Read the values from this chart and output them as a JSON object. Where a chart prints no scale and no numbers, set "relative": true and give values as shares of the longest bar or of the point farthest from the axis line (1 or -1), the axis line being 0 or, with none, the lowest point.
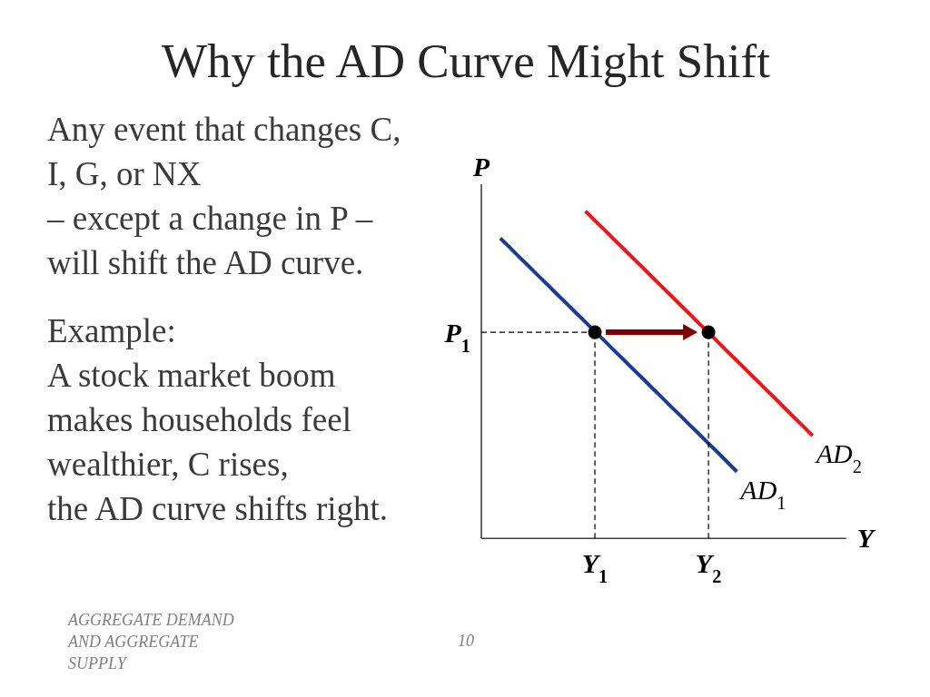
{
  "chart_data": {
    "type": "line",
    "title": "Why the AD Curve Might Shift",
    "xlabel": "Y",
    "ylabel": "P",
    "relative": true,
    "categories": [
      null,
      null,
      null,
      null,
      null,
      null,
      null,
      null,
      null,
      null,
      null,
      null,
      "Y$_{1}$",
      null,
      null,
      null,
      null,
      null,
      null,
      null,
      null,
      null,
      null,
      null,
      "Y$_{2}$",
      null,
      null,
      null,
      null,
      null,
      null,
      null,
      null,
      null,
      null,
      null,
      null,
      null,
      null
    ],
    "series": [
      {
        "name": "AD$_{1}$",
        "color": "#1a3c96",
        "values": [
          null,
          null,
          0.917,
          0.889,
          0.86,
          0.832,
          0.803,
          0.775,
          0.746,
          0.718,
          0.689,
          0.661,
          0.632,
          0.604,
          0.575,
          0.547,
          0.518,
          0.49,
          0.461,
          0.433,
          0.404,
          0.376,
          0.347,
          0.319,
          0.29,
          0.262,
          0.233,
          0.204,
          null,
          null,
          null,
          null,
          null,
          null,
          null,
          null,
          null,
          null,
          null
        ]
      },
      {
        "name": "AD$_{2}$",
        "color": "#f01418",
        "values": [
          null,
          null,
          null,
          null,
          null,
          null,
          null,
          null,
          null,
          null,
          null,
          1,
          0.971,
          0.943,
          0.914,
          0.886,
          0.857,
          0.829,
          0.8,
          0.771,
          0.743,
          0.714,
          0.686,
          0.657,
          0.629,
          0.6,
          0.571,
          0.543,
          0.514,
          0.486,
          0.457,
          0.429,
          0.4,
          0.371,
          0.343,
          0.314,
          null,
          null,
          null
        ]
      },
      {
        "name": "P$_{1}$",
        "type": "line",
        "color": "#000000",
        "line_style": "dashed",
        "values": [
          0.63,
          0.63,
          0.63,
          0.63,
          0.63,
          0.63,
          0.63,
          0.63,
          0.63,
          0.63,
          0.63,
          0.63,
          0.63,
          null,
          null,
          null,
          null,
          null,
          null,
          null,
          null,
          null,
          null,
          null,
          null,
          null,
          null,
          null,
          null,
          null,
          null,
          null,
          null,
          null,
          null,
          null,
          null,
          null,
          null
        ]
      },
      {
        "type": "lollipop",
        "color": "#000000",
        "line_style": "dashed",
        "marker": "circle",
        "values": [
          null,
          null,
          null,
          null,
          null,
          null,
          null,
          null,
          null,
          null,
          null,
          null,
          0.63,
          null,
          null,
          null,
          null,
          null,
          null,
          null,
          null,
          null,
          null,
          null,
          0.63,
          null,
          null,
          null,
          null,
          null,
          null,
          null,
          null,
          null,
          null,
          null,
          null,
          null,
          null
        ]
      }
    ],
    "annotations": [
      "Any event that changes C,\nI, G, or NX\n– except a change in P –\nwill shift the AD curve.",
      "Example:\nA stock market boom\nmakes households feel\nwealthier, C rises,\nthe AD curve shifts right.",
      "AGGREGATE DEMAND\nAND AGGREGATE\nSUPPLY",
      "10"
    ]
  }
}
